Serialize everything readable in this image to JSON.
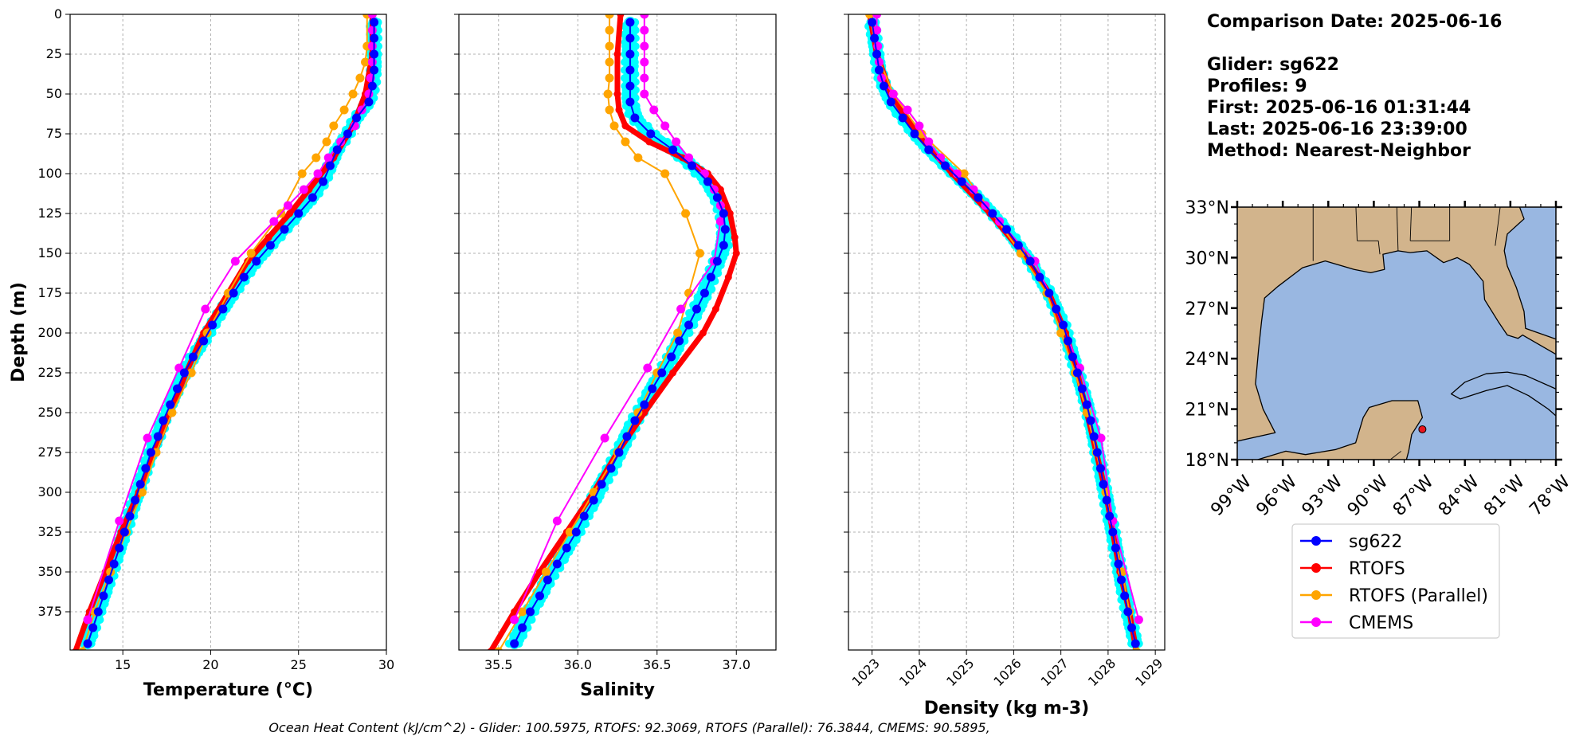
{
  "info": {
    "comparison_date": "Comparison Date: 2025-06-16",
    "glider": "Glider: sg622",
    "profiles": "Profiles: 9",
    "first": "First: 2025-06-16 01:31:44",
    "last": "Last: 2025-06-16 23:39:00",
    "method": "Method: Nearest-Neighbor"
  },
  "footer": "Ocean Heat Content (kJ/cm^2) - Glider: 100.5975,  RTOFS: 92.3069,  RTOFS (Parallel): 76.3844,  CMEMS: 90.5895,",
  "colors": {
    "sg622": "#0000ff",
    "rtofs": "#ff0000",
    "rtofs_parallel": "#ffa500",
    "cmems": "#ff00ff",
    "glider_cloud": "#00ffff",
    "land": "#d2b48c",
    "water": "#99b7e1",
    "grid": "#b0b0b0"
  },
  "legend": [
    "sg622",
    "RTOFS",
    "RTOFS (Parallel)",
    "CMEMS"
  ],
  "chart_data": [
    {
      "type": "line",
      "xlabel": "Temperature (°C)",
      "ylabel": "Depth (m)",
      "xlim": [
        12,
        30
      ],
      "ylim": [
        399,
        0
      ],
      "xticks": [
        15,
        20,
        25,
        30
      ],
      "yticks": [
        0,
        25,
        50,
        75,
        100,
        125,
        150,
        175,
        200,
        225,
        250,
        275,
        300,
        325,
        350,
        375
      ],
      "grid": true,
      "series": [
        {
          "name": "sg622",
          "depth": [
            5,
            15,
            25,
            35,
            45,
            55,
            65,
            75,
            85,
            95,
            105,
            115,
            125,
            135,
            145,
            155,
            165,
            175,
            185,
            195,
            205,
            215,
            225,
            235,
            245,
            255,
            265,
            275,
            285,
            295,
            305,
            315,
            325,
            335,
            345,
            355,
            365,
            375,
            385,
            395
          ],
          "values": [
            29.3,
            29.3,
            29.3,
            29.3,
            29.2,
            29.0,
            28.3,
            27.8,
            27.2,
            26.8,
            26.4,
            25.8,
            25.0,
            24.2,
            23.4,
            22.6,
            21.9,
            21.3,
            20.7,
            20.1,
            19.6,
            19.0,
            18.5,
            18.1,
            17.7,
            17.3,
            17.0,
            16.6,
            16.3,
            16.0,
            15.7,
            15.4,
            15.1,
            14.8,
            14.5,
            14.2,
            13.9,
            13.6,
            13.3,
            13.0
          ]
        },
        {
          "name": "RTOFS",
          "depth": [
            0,
            25,
            50,
            70,
            90,
            110,
            125,
            140,
            155,
            175,
            200,
            225,
            250,
            275,
            300,
            325,
            350,
            375,
            400
          ],
          "values": [
            29.2,
            29.2,
            28.8,
            28.1,
            27.0,
            25.6,
            24.5,
            23.3,
            22.1,
            21.0,
            19.6,
            18.6,
            17.7,
            16.8,
            15.9,
            14.9,
            14.0,
            13.1,
            12.3
          ]
        },
        {
          "name": "RTOFS (Parallel)",
          "depth": [
            0,
            20,
            30,
            40,
            50,
            60,
            70,
            80,
            90,
            100,
            125,
            150,
            175,
            200,
            225,
            250,
            275,
            300,
            325,
            350,
            375,
            400
          ],
          "values": [
            28.9,
            28.9,
            28.8,
            28.5,
            28.1,
            27.6,
            27.0,
            26.6,
            26.0,
            25.2,
            24.0,
            22.3,
            21.0,
            19.8,
            18.9,
            17.8,
            16.9,
            16.1,
            15.2,
            14.3,
            13.4,
            12.7
          ]
        },
        {
          "name": "CMEMS",
          "depth": [
            0,
            10,
            20,
            30,
            40,
            50,
            60,
            70,
            80,
            90,
            100,
            110,
            120,
            130,
            155,
            185,
            222,
            266,
            318,
            380
          ],
          "values": [
            29.2,
            29.2,
            29.2,
            29.2,
            29.1,
            29.0,
            28.6,
            28.2,
            27.4,
            26.7,
            26.1,
            25.3,
            24.4,
            23.6,
            21.4,
            19.7,
            18.2,
            16.4,
            14.8,
            13.0
          ]
        }
      ]
    },
    {
      "type": "line",
      "xlabel": "Salinity",
      "xlim": [
        35.25,
        37.25
      ],
      "ylim": [
        399,
        0
      ],
      "xticks": [
        35.5,
        36.0,
        36.5,
        37.0
      ],
      "grid": true,
      "series": [
        {
          "name": "sg622",
          "depth": [
            5,
            15,
            25,
            35,
            45,
            55,
            65,
            75,
            85,
            95,
            105,
            115,
            125,
            135,
            145,
            155,
            165,
            175,
            185,
            195,
            205,
            215,
            225,
            235,
            245,
            255,
            265,
            275,
            285,
            295,
            305,
            315,
            325,
            335,
            345,
            355,
            365,
            375,
            385,
            395
          ],
          "values": [
            36.33,
            36.33,
            36.33,
            36.33,
            36.33,
            36.33,
            36.36,
            36.46,
            36.6,
            36.72,
            36.82,
            36.88,
            36.92,
            36.93,
            36.92,
            36.88,
            36.84,
            36.8,
            36.75,
            36.7,
            36.64,
            36.59,
            36.53,
            36.47,
            36.42,
            36.36,
            36.31,
            36.26,
            36.21,
            36.15,
            36.1,
            36.04,
            35.99,
            35.93,
            35.87,
            35.81,
            35.76,
            35.7,
            35.65,
            35.6
          ]
        },
        {
          "name": "RTOFS",
          "depth": [
            0,
            25,
            50,
            60,
            70,
            80,
            90,
            100,
            110,
            125,
            140,
            150,
            165,
            185,
            200,
            225,
            250,
            275,
            300,
            325,
            350,
            375,
            400
          ],
          "values": [
            36.27,
            36.25,
            36.25,
            36.26,
            36.3,
            36.45,
            36.66,
            36.82,
            36.9,
            36.96,
            36.99,
            37.0,
            36.95,
            36.87,
            36.79,
            36.6,
            36.42,
            36.25,
            36.1,
            35.93,
            35.76,
            35.6,
            35.45
          ]
        },
        {
          "name": "RTOFS (Parallel)",
          "depth": [
            0,
            10,
            20,
            30,
            40,
            50,
            60,
            70,
            80,
            90,
            100,
            125,
            150,
            175,
            200,
            225,
            250,
            275,
            300,
            325,
            350,
            375,
            400
          ],
          "values": [
            36.2,
            36.2,
            36.2,
            36.2,
            36.2,
            36.19,
            36.2,
            36.23,
            36.3,
            36.38,
            36.55,
            36.68,
            36.77,
            36.7,
            36.63,
            36.5,
            36.38,
            36.25,
            36.1,
            35.95,
            35.8,
            35.65,
            35.5
          ]
        },
        {
          "name": "CMEMS",
          "depth": [
            0,
            10,
            20,
            30,
            40,
            50,
            60,
            70,
            80,
            90,
            100,
            110,
            120,
            130,
            155,
            185,
            222,
            266,
            318,
            380
          ],
          "values": [
            36.42,
            36.42,
            36.42,
            36.42,
            36.42,
            36.42,
            36.48,
            36.55,
            36.62,
            36.7,
            36.8,
            36.86,
            36.9,
            36.9,
            36.86,
            36.65,
            36.44,
            36.17,
            35.87,
            35.6
          ]
        }
      ]
    },
    {
      "type": "line",
      "xlabel": "Density (kg m-3)",
      "xlim": [
        1022.5,
        1029.2
      ],
      "ylim": [
        399,
        0
      ],
      "xticks": [
        1023,
        1024,
        1025,
        1026,
        1027,
        1028,
        1029
      ],
      "grid": true,
      "series": [
        {
          "name": "sg622",
          "depth": [
            5,
            15,
            25,
            35,
            45,
            55,
            65,
            75,
            85,
            95,
            105,
            115,
            125,
            135,
            145,
            155,
            165,
            175,
            185,
            195,
            205,
            215,
            225,
            235,
            245,
            255,
            265,
            275,
            285,
            295,
            305,
            315,
            325,
            335,
            345,
            355,
            365,
            375,
            385,
            395
          ],
          "values": [
            1023.0,
            1023.05,
            1023.1,
            1023.15,
            1023.25,
            1023.4,
            1023.65,
            1023.9,
            1024.2,
            1024.55,
            1024.9,
            1025.25,
            1025.55,
            1025.85,
            1026.1,
            1026.35,
            1026.55,
            1026.75,
            1026.9,
            1027.05,
            1027.15,
            1027.25,
            1027.35,
            1027.45,
            1027.55,
            1027.63,
            1027.7,
            1027.77,
            1027.84,
            1027.9,
            1027.97,
            1028.03,
            1028.1,
            1028.16,
            1028.22,
            1028.28,
            1028.35,
            1028.42,
            1028.5,
            1028.58
          ]
        },
        {
          "name": "RTOFS",
          "depth": [
            0,
            25,
            50,
            75,
            100,
            125,
            150,
            175,
            200,
            225,
            250,
            275,
            300,
            325,
            350,
            375,
            400
          ],
          "values": [
            1022.95,
            1023.1,
            1023.4,
            1023.95,
            1024.7,
            1025.5,
            1026.2,
            1026.75,
            1027.1,
            1027.35,
            1027.55,
            1027.75,
            1027.95,
            1028.1,
            1028.25,
            1028.45,
            1028.6
          ]
        },
        {
          "name": "RTOFS (Parallel)",
          "depth": [
            0,
            25,
            50,
            75,
            100,
            125,
            150,
            175,
            200,
            225,
            250,
            275,
            300,
            325,
            350,
            375,
            400
          ],
          "values": [
            1022.95,
            1023.1,
            1023.45,
            1024.05,
            1024.95,
            1025.55,
            1026.15,
            1026.7,
            1027.0,
            1027.3,
            1027.55,
            1027.75,
            1027.95,
            1028.1,
            1028.3,
            1028.45,
            1028.6
          ]
        },
        {
          "name": "CMEMS",
          "depth": [
            0,
            10,
            20,
            30,
            40,
            50,
            60,
            70,
            80,
            90,
            100,
            110,
            120,
            130,
            155,
            185,
            222,
            266,
            318,
            380
          ],
          "values": [
            1023.1,
            1023.1,
            1023.12,
            1023.15,
            1023.2,
            1023.45,
            1023.75,
            1024.0,
            1024.2,
            1024.45,
            1024.8,
            1025.15,
            1025.4,
            1025.7,
            1026.45,
            1026.9,
            1027.4,
            1027.85,
            1028.1,
            1028.65
          ]
        }
      ]
    },
    {
      "type": "map",
      "lonlim": [
        -99,
        -78
      ],
      "latlim": [
        18,
        33
      ],
      "lon_ticks": [
        "99°W",
        "96°W",
        "93°W",
        "90°W",
        "87°W",
        "84°W",
        "81°W",
        "78°W"
      ],
      "lat_ticks": [
        "33°N",
        "30°N",
        "27°N",
        "24°N",
        "21°N",
        "18°N"
      ],
      "marker": {
        "lon": -86.8,
        "lat": 19.8
      }
    }
  ]
}
